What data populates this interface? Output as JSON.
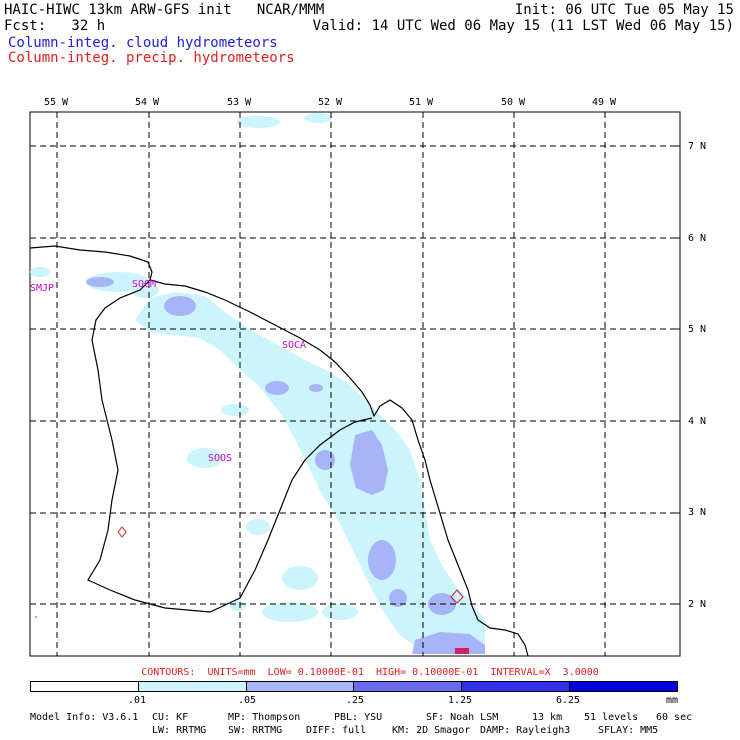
{
  "header": {
    "line1_left": "HAIC-HIWC 13km ARW-GFS init   NCAR/MMM",
    "line1_right": "Init: 06 UTC Tue 05 May 15",
    "line2_left": "Fcst:   32 h",
    "line2_right": "Valid: 14 UTC Wed 06 May 15 (11 LST Wed 06 May 15)",
    "field1": "Column-integ. cloud hydrometeors",
    "field2": "Column-integ. precip. hydrometeors"
  },
  "map": {
    "lon_labels": [
      "55 W",
      "54 W",
      "53 W",
      "52 W",
      "51 W",
      "50 W",
      "49 W"
    ],
    "lat_labels": [
      "7 N",
      "6 N",
      "5 N",
      "4 N",
      "3 N",
      "2 N"
    ],
    "stations": [
      "SMJP",
      "SOGM",
      "SOCA",
      "SOOS"
    ]
  },
  "contours": "CONTOURS:  UNITS=mm  LOW= 0.10000E-01  HIGH= 0.10000E-01  INTERVAL=X  3.0000",
  "colorbar": {
    "colors": [
      "#ffffff",
      "#ccf4fc",
      "#a8b4f8",
      "#6a6af0",
      "#3030e8",
      "#0000e0"
    ],
    "labels": [
      ".01",
      ".05",
      ".25",
      "1.25",
      "6.25"
    ],
    "units": "mm"
  },
  "footer": {
    "line1": [
      "Model Info: V3.6.1",
      "CU: KF",
      "MP: Thompson",
      "PBL: YSU",
      "SF: Noah LSM",
      "13 km",
      "51 levels",
      "60 sec"
    ],
    "line2": [
      "LW: RRTMG",
      "SW: RRTMG",
      "DIFF: full",
      "KM: 2D Smagor",
      "DAMP: Rayleigh3",
      "SFLAY: MM5"
    ]
  }
}
